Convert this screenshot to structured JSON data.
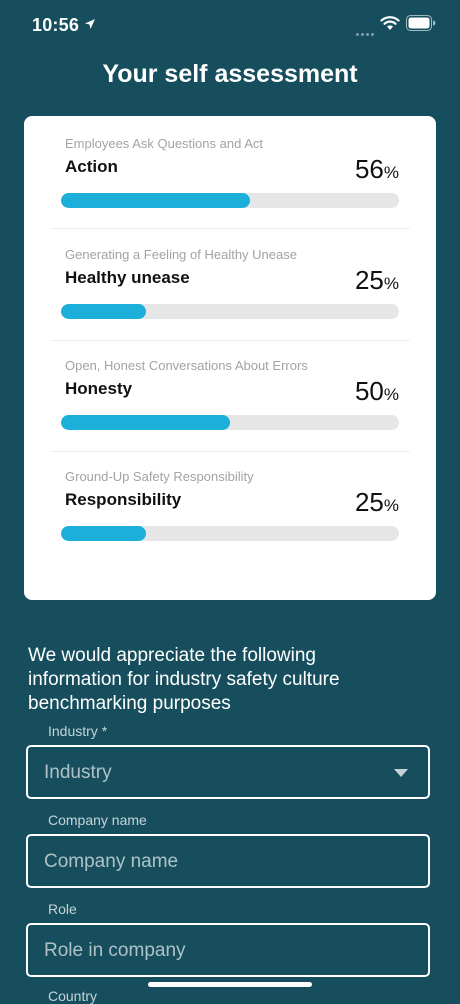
{
  "status_bar": {
    "time": "10:56"
  },
  "page": {
    "title": "Your self assessment"
  },
  "assessment": {
    "items": [
      {
        "subtitle": "Employees Ask Questions and Act",
        "title": "Action",
        "value": "56",
        "unit": "%",
        "progress": 0.56
      },
      {
        "subtitle": "Generating a Feeling of Healthy Unease",
        "title": "Healthy unease",
        "value": "25",
        "unit": "%",
        "progress": 0.25
      },
      {
        "subtitle": "Open, Honest Conversations About Errors",
        "title": "Honesty",
        "value": "50",
        "unit": "%",
        "progress": 0.5
      },
      {
        "subtitle": "Ground-Up Safety Responsibility",
        "title": "Responsibility",
        "value": "25",
        "unit": "%",
        "progress": 0.25
      }
    ]
  },
  "form": {
    "intro": "We would appreciate the following information for industry safety culture benchmarking purposes",
    "industry": {
      "label": "Industry *",
      "placeholder": "Industry"
    },
    "company": {
      "label": "Company name",
      "placeholder": "Company name"
    },
    "role": {
      "label": "Role",
      "placeholder": "Role in company"
    },
    "country": {
      "label": "Country"
    }
  },
  "colors": {
    "background": "#164E5E",
    "bar_fill": "#1BAFD9",
    "bar_track": "#E6E6E6"
  }
}
